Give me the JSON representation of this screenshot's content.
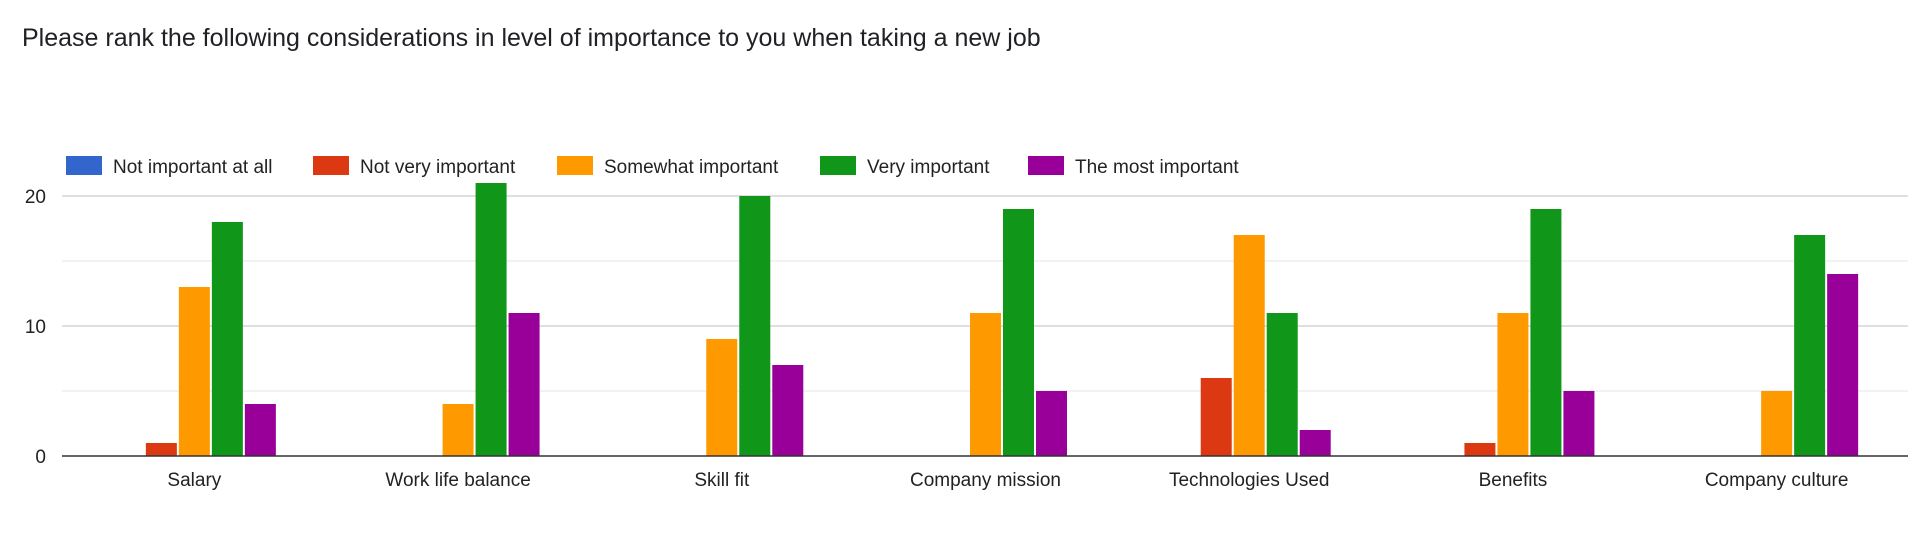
{
  "chart_data": {
    "type": "bar",
    "title": "Please rank the following considerations in level of importance to you when taking a new job",
    "categories": [
      "Salary",
      "Work life balance",
      "Skill fit",
      "Company mission",
      "Technologies Used",
      "Benefits",
      "Company culture"
    ],
    "series": [
      {
        "name": "Not important at all",
        "color": "#3366cc",
        "values": [
          0,
          0,
          0,
          0,
          0,
          0,
          0
        ]
      },
      {
        "name": "Not very important",
        "color": "#dc3912",
        "values": [
          1,
          0,
          0,
          0,
          6,
          1,
          0
        ]
      },
      {
        "name": "Somewhat important",
        "color": "#ff9900",
        "values": [
          13,
          4,
          9,
          11,
          17,
          11,
          5
        ]
      },
      {
        "name": "Very important",
        "color": "#109618",
        "values": [
          18,
          21,
          20,
          19,
          11,
          19,
          17
        ]
      },
      {
        "name": "The most important",
        "color": "#990099",
        "values": [
          4,
          11,
          7,
          5,
          2,
          5,
          14
        ]
      }
    ],
    "y_ticks": [
      0,
      10,
      20
    ],
    "ylim": [
      0,
      20
    ],
    "grid": true,
    "legend_position": "top-left"
  }
}
